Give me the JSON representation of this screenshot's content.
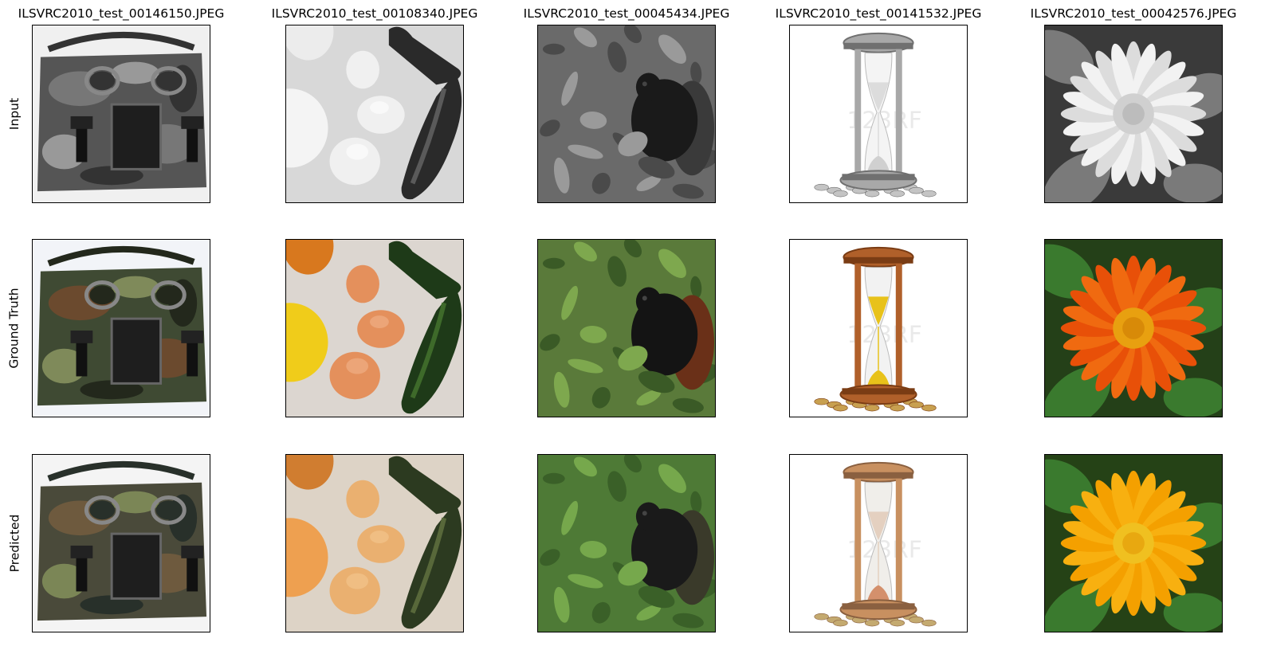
{
  "figure": {
    "columns": [
      {
        "title": "ILSVRC2010_test_00146150.JPEG",
        "subject": "camouflage-bag"
      },
      {
        "title": "ILSVRC2010_test_00108340.JPEG",
        "subject": "eggs-zucchini"
      },
      {
        "title": "ILSVRC2010_test_00045434.JPEG",
        "subject": "monkey-foliage"
      },
      {
        "title": "ILSVRC2010_test_00141532.JPEG",
        "subject": "hourglass"
      },
      {
        "title": "ILSVRC2010_test_00042576.JPEG",
        "subject": "flower"
      }
    ],
    "rows": [
      {
        "label": "Input",
        "mode": "gray"
      },
      {
        "label": "Ground Truth",
        "mode": "truth"
      },
      {
        "label": "Predicted",
        "mode": "pred"
      }
    ]
  }
}
